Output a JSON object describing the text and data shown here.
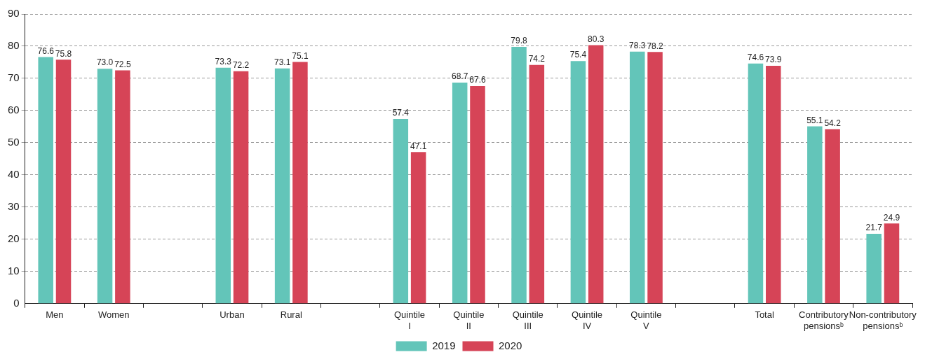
{
  "chart_data": {
    "type": "bar",
    "categories": [
      "Men",
      "Women",
      null,
      "Urban",
      "Rural",
      null,
      "Quintile I",
      "Quintile II",
      "Quintile III",
      "Quintile IV",
      "Quintile V",
      null,
      "Total",
      "Contributory pensionsᵇ",
      "Non-contributory pensionsᵇ"
    ],
    "series": [
      {
        "name": "2019",
        "color": "#63c5b9",
        "values": [
          76.6,
          73.0,
          null,
          73.3,
          73.1,
          null,
          57.4,
          68.7,
          79.8,
          75.4,
          78.3,
          null,
          74.6,
          55.1,
          21.7
        ],
        "value_labels": [
          "76.6",
          "73.0",
          null,
          "73.3",
          "73.1",
          null,
          "57.4",
          "68.7",
          "79.8",
          "75.4",
          "78.3",
          null,
          "74.6",
          "55.1",
          "21.7"
        ]
      },
      {
        "name": "2020",
        "color": "#d64457",
        "values": [
          75.8,
          72.5,
          null,
          72.2,
          75.1,
          null,
          47.1,
          67.6,
          74.2,
          80.3,
          78.2,
          null,
          73.9,
          54.2,
          24.9
        ],
        "value_labels": [
          "75.8",
          "72.5",
          null,
          "72.2",
          "75.1",
          null,
          "47.1",
          "67.6",
          "74.2",
          "80.3",
          "78.2",
          null,
          "73.9",
          "54.2",
          "24.9"
        ]
      }
    ],
    "ylim": [
      0,
      90
    ],
    "yticks": [
      0,
      10,
      20,
      30,
      40,
      50,
      60,
      70,
      80,
      90
    ],
    "grid": "y",
    "legend": "bottom"
  }
}
